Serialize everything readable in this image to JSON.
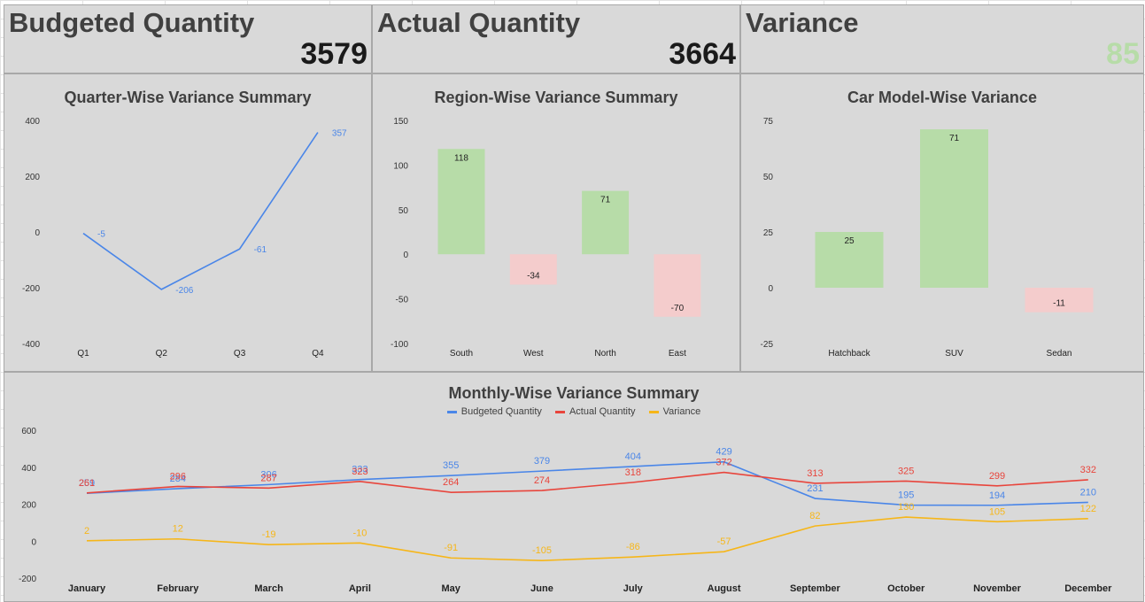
{
  "kpis": {
    "budgeted": {
      "label": "Budgeted Quantity",
      "value": "3579"
    },
    "actual": {
      "label": "Actual Quantity",
      "value": "3664"
    },
    "variance": {
      "label": "Variance",
      "value": "85",
      "color": "#b7dca8"
    }
  },
  "colors": {
    "positive_bar": "#b7dca8",
    "negative_bar": "#f4cccc",
    "budgeted": "#4a86e8",
    "actual": "#e8453c",
    "variance": "#f6b619"
  },
  "chart_data": [
    {
      "type": "line",
      "title": "Quarter-Wise Variance Summary",
      "categories": [
        "Q1",
        "Q2",
        "Q3",
        "Q4"
      ],
      "values": [
        -5,
        -206,
        -61,
        357
      ],
      "ylim": [
        -400,
        400
      ],
      "yticks": [
        400,
        200,
        0,
        -200,
        -400
      ],
      "grid": false,
      "color": "#4a86e8"
    },
    {
      "type": "bar",
      "title": "Region-Wise Variance Summary",
      "categories": [
        "South",
        "West",
        "North",
        "East"
      ],
      "values": [
        118,
        -34,
        71,
        -70
      ],
      "ylim": [
        -100,
        150
      ],
      "yticks": [
        150,
        100,
        50,
        0,
        -50,
        -100
      ],
      "grid": false
    },
    {
      "type": "bar",
      "title": "Car Model-Wise Variance",
      "categories": [
        "Hatchback",
        "SUV",
        "Sedan"
      ],
      "values": [
        25,
        71,
        -11
      ],
      "ylim": [
        -25,
        75
      ],
      "yticks": [
        75,
        50,
        25,
        0,
        -25
      ],
      "grid": false
    },
    {
      "type": "line",
      "title": "Monthly-Wise Variance Summary",
      "categories": [
        "January",
        "February",
        "March",
        "April",
        "May",
        "June",
        "July",
        "August",
        "September",
        "October",
        "November",
        "December"
      ],
      "series": [
        {
          "name": "Budgeted Quantity",
          "values": [
            259,
            284,
            306,
            333,
            355,
            379,
            404,
            429,
            231,
            195,
            194,
            210
          ]
        },
        {
          "name": "Actual Quantity",
          "values": [
            261,
            296,
            287,
            323,
            264,
            274,
            318,
            372,
            313,
            325,
            299,
            332
          ]
        },
        {
          "name": "Variance",
          "values": [
            2,
            12,
            -19,
            -10,
            -91,
            -105,
            -86,
            -57,
            82,
            130,
            105,
            122
          ]
        }
      ],
      "ylim": [
        -200,
        600
      ],
      "yticks": [
        600,
        400,
        200,
        0,
        -200
      ],
      "legend": "top",
      "grid": false
    }
  ]
}
